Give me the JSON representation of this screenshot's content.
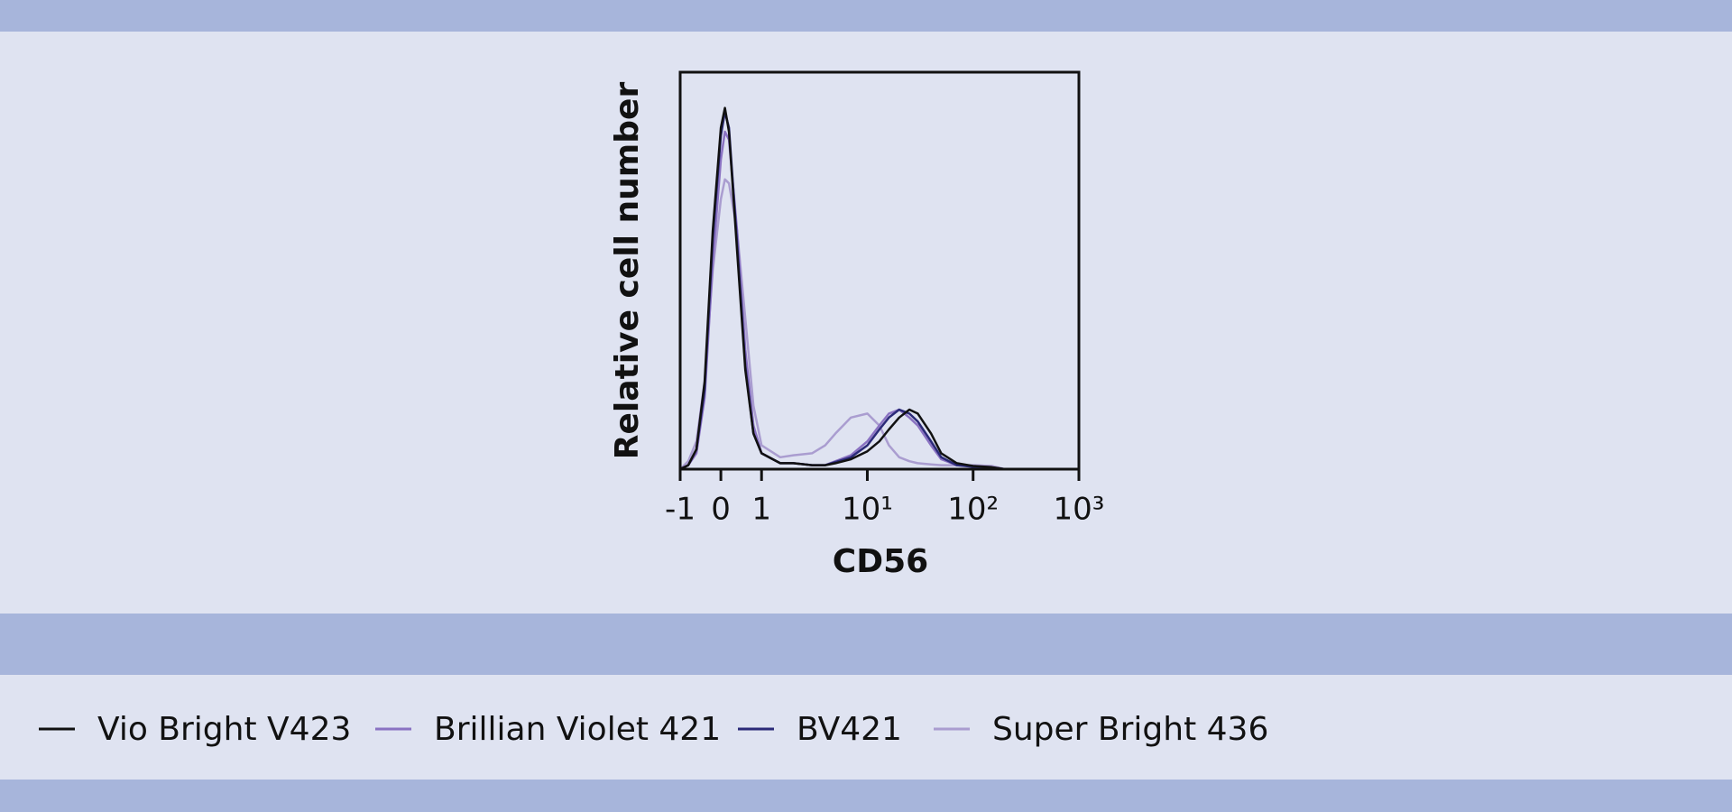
{
  "chart_data": {
    "type": "line",
    "x_label": "CD56",
    "y_label": "Relative cell number",
    "xscale": "biexponential",
    "x": [
      -1,
      -0.8,
      -0.6,
      -0.4,
      -0.2,
      0,
      0.1,
      0.2,
      0.4,
      0.6,
      0.8,
      1,
      1.5,
      2,
      3,
      4,
      5,
      7,
      10,
      13,
      16,
      20,
      25,
      30,
      40,
      50,
      70,
      100,
      150,
      200
    ],
    "xlim": [
      -1,
      1000
    ],
    "xticks": [
      -1,
      0,
      1,
      {
        "value": 10,
        "label": "10¹"
      },
      {
        "value": 100,
        "label": "10²"
      },
      {
        "value": 1000,
        "label": "10³"
      }
    ],
    "ylim": [
      0,
      100
    ],
    "legend": "bottom",
    "series": [
      {
        "name": "Vio Bright V423",
        "color": "#111111",
        "values": [
          0,
          1,
          5,
          22,
          60,
          86,
          91,
          85,
          55,
          25,
          9,
          4,
          1.5,
          1.5,
          1,
          1,
          1.5,
          2.5,
          4.5,
          7,
          10,
          13,
          15,
          14,
          9,
          4,
          1.5,
          0.8,
          0.5,
          0
        ]
      },
      {
        "name": "Brillian Violet 421",
        "color": "#8a72c2",
        "values": [
          0,
          1,
          4,
          18,
          52,
          78,
          85,
          83,
          60,
          30,
          11,
          4,
          1.5,
          1.5,
          1,
          1,
          2,
          3.5,
          7,
          11,
          14,
          15,
          13,
          11,
          6,
          2.5,
          1,
          0.8,
          0.5,
          0
        ]
      },
      {
        "name": "BV421",
        "color": "#2b2a78",
        "values": [
          0,
          1,
          5,
          20,
          58,
          84,
          90,
          86,
          57,
          26,
          9,
          4,
          1.5,
          1.5,
          1,
          1,
          1.8,
          3,
          6,
          10,
          13,
          15,
          14,
          12,
          7,
          3,
          1,
          0.6,
          0.4,
          0
        ]
      },
      {
        "name": "Super Bright 436",
        "color": "#aa9dd0",
        "values": [
          0,
          2,
          7,
          22,
          50,
          68,
          73,
          72,
          60,
          38,
          16,
          6,
          3,
          3.5,
          4,
          6,
          9,
          13,
          14,
          11,
          6,
          3,
          2,
          1.5,
          1.2,
          1,
          1,
          1,
          0.8,
          0
        ]
      }
    ]
  }
}
